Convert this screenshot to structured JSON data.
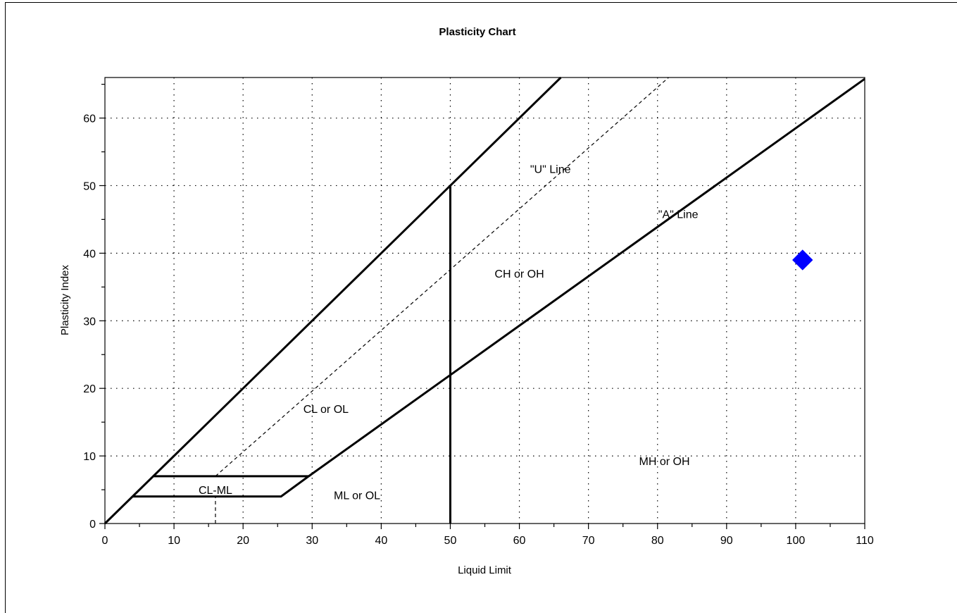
{
  "chart_data": {
    "type": "scatter",
    "title": "Plasticity Chart",
    "xlabel": "Liquid Limit",
    "ylabel": "Plasticity Index",
    "xlim": [
      0,
      110
    ],
    "ylim": [
      0,
      66
    ],
    "x_ticks": [
      0,
      10,
      20,
      30,
      40,
      50,
      60,
      70,
      80,
      90,
      100,
      110
    ],
    "y_ticks": [
      0,
      10,
      20,
      30,
      40,
      50,
      60
    ],
    "x_minor_step": 5,
    "y_minor_step": 5,
    "grid": true,
    "points": [
      {
        "x": 101,
        "y": 39,
        "marker": "diamond",
        "color": "#0000ff"
      }
    ],
    "lines": [
      {
        "name": "\"A\" Line",
        "style": "solid",
        "points": [
          [
            29.5,
            7
          ],
          [
            110,
            65.8
          ]
        ]
      },
      {
        "name": "\"U\" Line",
        "style": "dashed",
        "points": [
          [
            16,
            7
          ],
          [
            81.6,
            66
          ]
        ]
      },
      {
        "name": "upper boundary",
        "style": "solid",
        "points": [
          [
            0,
            0
          ],
          [
            66,
            66
          ]
        ]
      },
      {
        "name": "LL 50 divider",
        "style": "solid",
        "points": [
          [
            50,
            0
          ],
          [
            50,
            50
          ]
        ]
      },
      {
        "name": "CL-ML zone",
        "style": "solid",
        "points": [
          [
            7,
            7
          ],
          [
            29.5,
            7
          ],
          [
            25.5,
            4
          ],
          [
            4,
            4
          ]
        ]
      },
      {
        "name": "LL 16 marker",
        "style": "dashed",
        "points": [
          [
            16,
            0
          ],
          [
            16,
            4
          ]
        ]
      }
    ],
    "annotations": [
      {
        "text": "\"U\" Line",
        "x": 64.5,
        "y": 52.5
      },
      {
        "text": "\"A\" Line",
        "x": 83,
        "y": 45.8
      },
      {
        "text": "CH or OH",
        "x": 60,
        "y": 37
      },
      {
        "text": "CL or OL",
        "x": 32,
        "y": 17
      },
      {
        "text": "CL-ML",
        "x": 16,
        "y": 5
      },
      {
        "text": "ML or OL",
        "x": 36.5,
        "y": 4.2
      },
      {
        "text": "MH or OH",
        "x": 81,
        "y": 9.3
      }
    ]
  }
}
